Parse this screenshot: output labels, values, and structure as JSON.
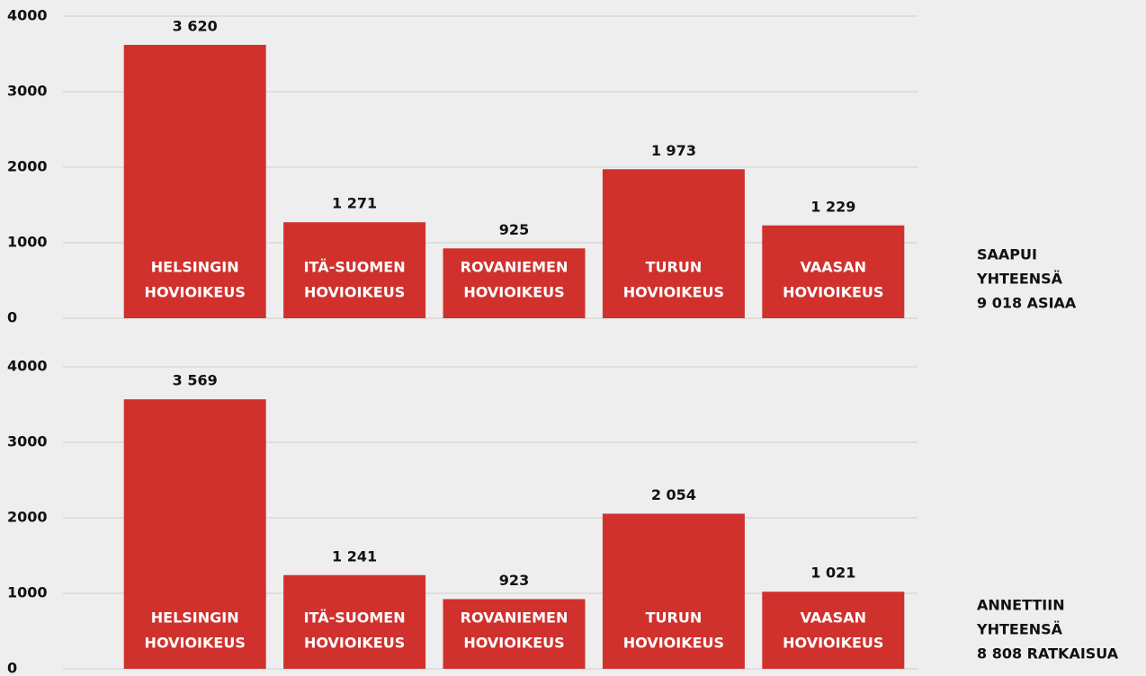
{
  "chart_data": [
    {
      "type": "bar",
      "categories": [
        [
          "HELSINGIN",
          "HOVIOIKEUS"
        ],
        [
          "ITÄ-SUOMEN",
          "HOVIOIKEUS"
        ],
        [
          "ROVANIEMEN",
          "HOVIOIKEUS"
        ],
        [
          "TURUN",
          "HOVIOIKEUS"
        ],
        [
          "VAASAN",
          "HOVIOIKEUS"
        ]
      ],
      "values": [
        3620,
        1271,
        925,
        1973,
        1229
      ],
      "value_labels": [
        "3 620",
        "1 271",
        "925",
        "1 973",
        "1 229"
      ],
      "color": "#d0312d",
      "ylim": [
        0,
        4000
      ],
      "yticks": [
        0,
        1000,
        2000,
        3000,
        4000
      ],
      "grid": true,
      "annotation": [
        "SAAPUI",
        "YHTEENSÄ",
        "9 018 ASIAA"
      ]
    },
    {
      "type": "bar",
      "categories": [
        [
          "HELSINGIN",
          "HOVIOIKEUS"
        ],
        [
          "ITÄ-SUOMEN",
          "HOVIOIKEUS"
        ],
        [
          "ROVANIEMEN",
          "HOVIOIKEUS"
        ],
        [
          "TURUN",
          "HOVIOIKEUS"
        ],
        [
          "VAASAN",
          "HOVIOIKEUS"
        ]
      ],
      "values": [
        3569,
        1241,
        923,
        2054,
        1021
      ],
      "value_labels": [
        "3 569",
        "1 241",
        "923",
        "2 054",
        "1 021"
      ],
      "color": "#d0312d",
      "ylim": [
        0,
        4000
      ],
      "yticks": [
        0,
        1000,
        2000,
        3000,
        4000
      ],
      "grid": true,
      "annotation": [
        "ANNETTIIN",
        "YHTEENSÄ",
        "8 808 RATKAISUA"
      ]
    }
  ]
}
